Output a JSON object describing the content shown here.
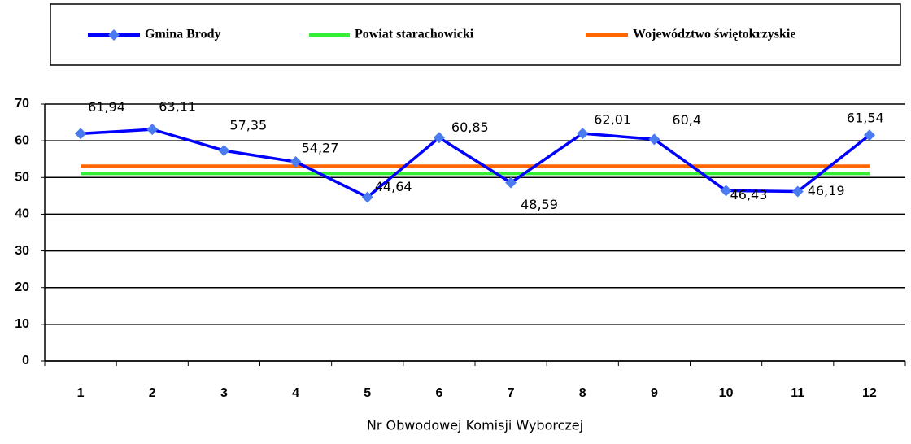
{
  "chart_data": {
    "type": "line",
    "x_label": "Nr Obwodowej Komisji Wyborczej",
    "categories": [
      "1",
      "2",
      "3",
      "4",
      "5",
      "6",
      "7",
      "8",
      "9",
      "10",
      "11",
      "12"
    ],
    "series": [
      {
        "name": "Gmina Brody",
        "color": "#0000ff",
        "marker_color": "#4a7bf0",
        "values": [
          61.94,
          63.11,
          57.35,
          54.27,
          44.64,
          60.85,
          48.59,
          62.01,
          60.4,
          46.43,
          46.19,
          61.54
        ],
        "value_labels": [
          "61,94",
          "63,11",
          "57,35",
          "54,27",
          "44,64",
          "60,85",
          "48,59",
          "62,01",
          "60,4",
          "46,43",
          "46,19",
          "61,54"
        ]
      },
      {
        "name": "Powiat starachowicki",
        "color": "#33ee33",
        "values": [
          51.1,
          51.1,
          51.1,
          51.1,
          51.1,
          51.1,
          51.1,
          51.1,
          51.1,
          51.1,
          51.1,
          51.1
        ]
      },
      {
        "name": "Województwo świętokrzyskie",
        "color": "#ff6600",
        "values": [
          53.1,
          53.1,
          53.1,
          53.1,
          53.1,
          53.1,
          53.1,
          53.1,
          53.1,
          53.1,
          53.1,
          53.1
        ]
      }
    ],
    "ylim": [
      0,
      70
    ],
    "yticks": [
      0,
      10,
      20,
      30,
      40,
      50,
      60,
      70
    ],
    "grid": true
  }
}
